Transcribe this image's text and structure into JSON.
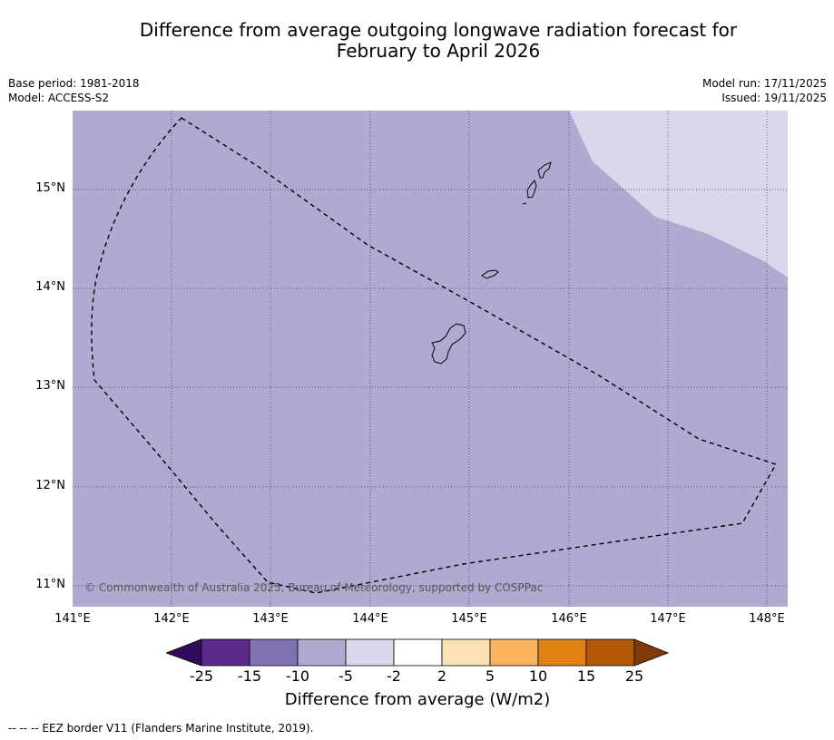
{
  "title": {
    "line1": "Difference from average outgoing longwave radiation forecast for",
    "line2": "February to April 2026"
  },
  "meta": {
    "base_period": "Base period: 1981-2018",
    "model": "Model: ACCESS-S2",
    "model_run": "Model run: 17/11/2025",
    "issued": "Issued: 19/11/2025"
  },
  "map": {
    "copyright": "© Commonwealth of Australia 2025, Bureau of Meteorology, supported by COSPPac",
    "lat_labels": [
      "15°N",
      "14°N",
      "13°N",
      "12°N",
      "11°N"
    ],
    "lon_labels": [
      "141°E",
      "142°E",
      "143°E",
      "144°E",
      "145°E",
      "146°E",
      "147°E",
      "148°E"
    ],
    "background_category": "-10 to -5",
    "background_color": "#b0aad0",
    "upper_right_category": "-5 to -2",
    "upper_right_color": "#d8d8ea"
  },
  "colorbar": {
    "ticks": [
      "-25",
      "-15",
      "-10",
      "-5",
      "-2",
      "2",
      "5",
      "10",
      "15",
      "25"
    ],
    "colors": [
      "#320a5a",
      "#5a2a8c",
      "#8072b0",
      "#b0aad0",
      "#d8d8ea",
      "#ffffff",
      "#fde0b4",
      "#fbb35f",
      "#e08214",
      "#b35806",
      "#7f3b08"
    ],
    "title": "Difference from average (W/m2)"
  },
  "footnote": "--  --  -- EEZ border V11 (Flanders Marine Institute, 2019)."
}
